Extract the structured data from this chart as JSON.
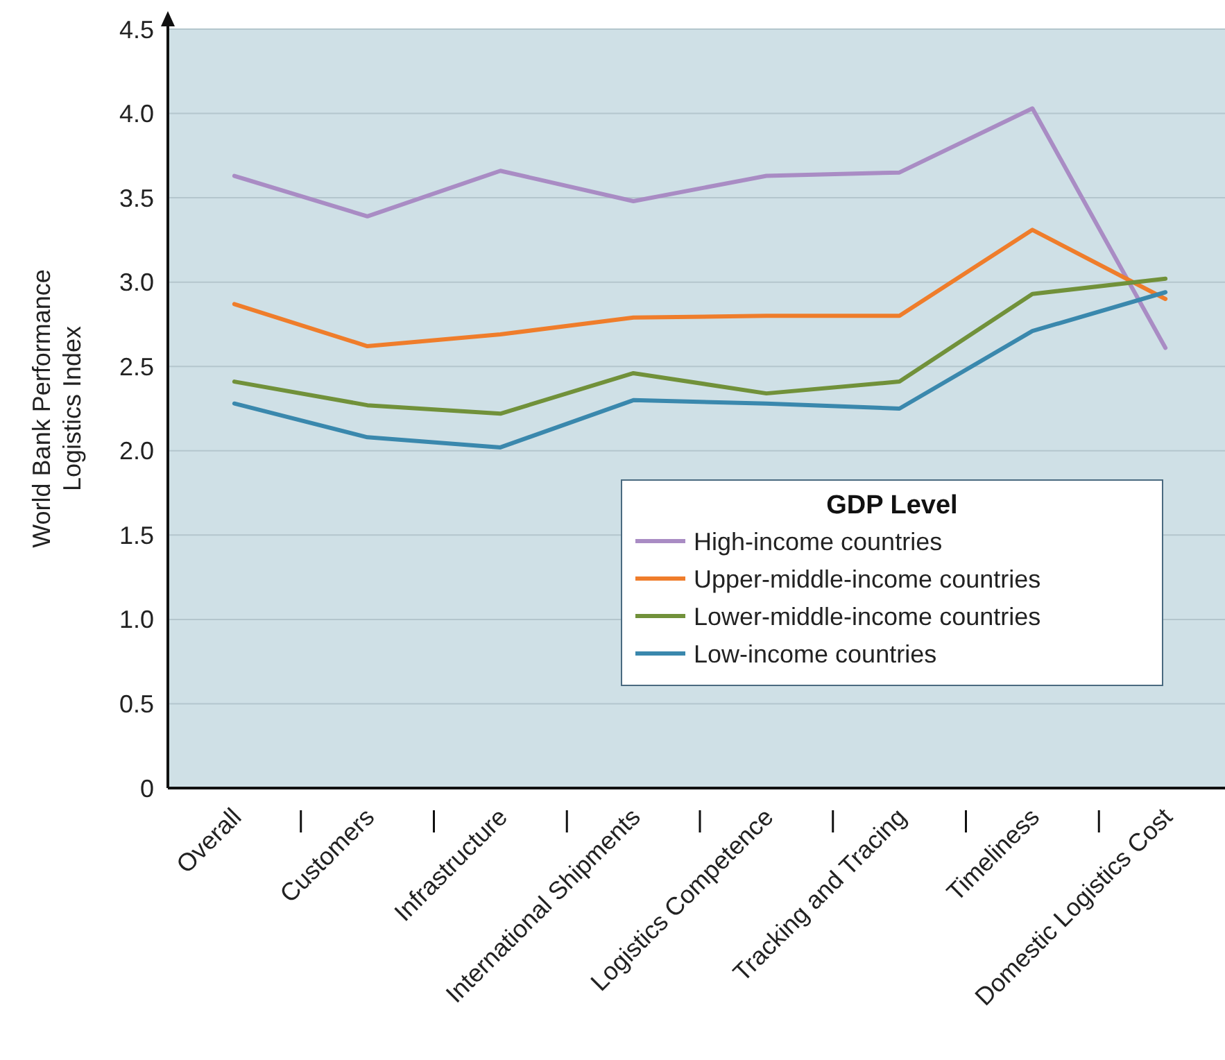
{
  "chart_data": {
    "type": "line",
    "ylabel": "World Bank Performance Logistics Index",
    "legend_title": "GDP Level",
    "legend": "right",
    "grid": "y",
    "marker": "none",
    "line_style": "solid",
    "categories": [
      "Overall",
      "Customers",
      "Infrastructure",
      "International Shipments",
      "Logistics Competence",
      "Tracking and Tracing",
      "Timeliness",
      "Domestic Logistics Cost"
    ],
    "ylim": [
      0,
      4.5
    ],
    "yticks": [
      0,
      {
        "value": 0.5,
        "label": "0.5"
      },
      {
        "value": 1,
        "label": "1.0"
      },
      {
        "value": 1.5,
        "label": "1.5"
      },
      {
        "value": 2,
        "label": "2.0"
      },
      {
        "value": 2.5,
        "label": "2.5"
      },
      {
        "value": 3,
        "label": "3.0"
      },
      {
        "value": 3.5,
        "label": "3.5"
      },
      {
        "value": 4,
        "label": "4.0"
      },
      {
        "value": 4.5,
        "label": "4.5"
      }
    ],
    "series": [
      {
        "name": "High-income countries",
        "color": "#a98cc4",
        "values": [
          3.63,
          3.39,
          3.66,
          3.48,
          3.63,
          3.65,
          4.03,
          2.61
        ]
      },
      {
        "name": "Upper-middle-income countries",
        "color": "#ef7d2b",
        "values": [
          2.87,
          2.62,
          2.69,
          2.79,
          2.8,
          2.8,
          3.31,
          2.9
        ]
      },
      {
        "name": "Lower-middle-income countries",
        "color": "#71913a",
        "values": [
          2.41,
          2.27,
          2.22,
          2.46,
          2.34,
          2.41,
          2.93,
          3.02
        ]
      },
      {
        "name": "Low-income countries",
        "color": "#3a88ad",
        "values": [
          2.28,
          2.08,
          2.02,
          2.3,
          2.28,
          2.25,
          2.71,
          2.94
        ]
      }
    ]
  }
}
